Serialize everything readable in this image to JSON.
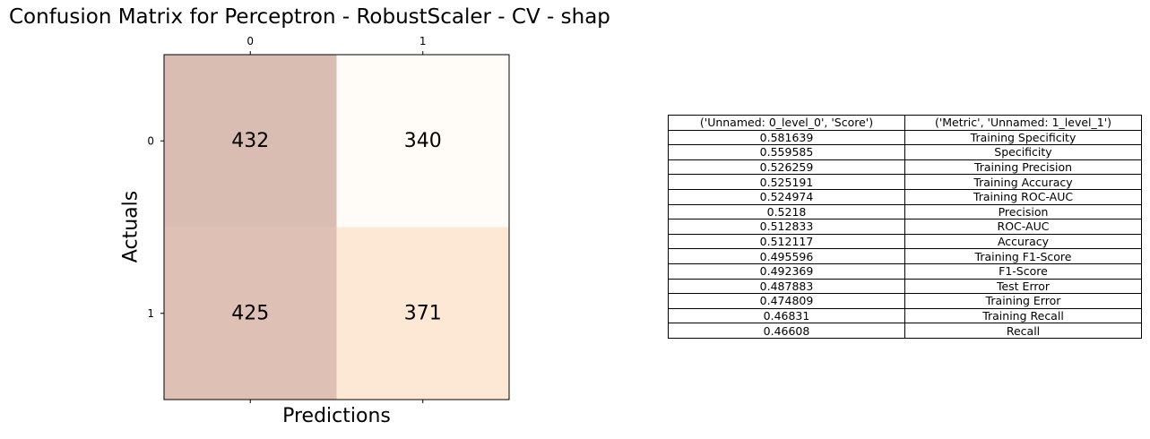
{
  "title": "Confusion Matrix for Perceptron - RobustScaler - CV - shap",
  "chart_data": {
    "type": "heatmap",
    "xlabel": "Predictions",
    "ylabel": "Actuals",
    "x_ticks": [
      "0",
      "1"
    ],
    "y_ticks": [
      "0",
      "1"
    ],
    "x_tick_position": "top",
    "values": [
      [
        432,
        340
      ],
      [
        425,
        371
      ]
    ],
    "cell_colors": [
      [
        "#d9bdb3",
        "#fffbf7"
      ],
      [
        "#dec1b4",
        "#fde8d5"
      ]
    ]
  },
  "metrics_table": {
    "columns": [
      "('Unnamed: 0_level_0', 'Score')",
      "('Metric', 'Unnamed: 1_level_1')"
    ],
    "rows": [
      [
        "0.581639",
        "Training Specificity"
      ],
      [
        "0.559585",
        "Specificity"
      ],
      [
        "0.526259",
        "Training Precision"
      ],
      [
        "0.525191",
        "Training Accuracy"
      ],
      [
        "0.524974",
        "Training ROC-AUC"
      ],
      [
        "0.5218",
        "Precision"
      ],
      [
        "0.512833",
        "ROC-AUC"
      ],
      [
        "0.512117",
        "Accuracy"
      ],
      [
        "0.495596",
        "Training F1-Score"
      ],
      [
        "0.492369",
        "F1-Score"
      ],
      [
        "0.487883",
        "Test Error"
      ],
      [
        "0.474809",
        "Training Error"
      ],
      [
        "0.46831",
        "Training Recall"
      ],
      [
        "0.46608",
        "Recall"
      ]
    ]
  }
}
